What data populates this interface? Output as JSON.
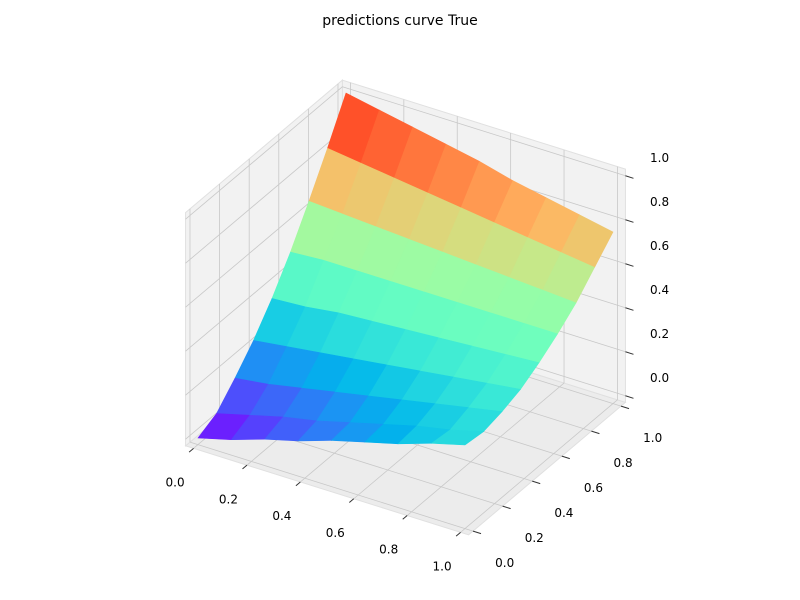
{
  "chart_data": {
    "type": "surface",
    "title": "predictions curve True",
    "x": [
      0,
      0.125,
      0.25,
      0.375,
      0.5,
      0.625,
      0.75,
      0.875,
      1
    ],
    "y": [
      0,
      0.125,
      0.25,
      0.375,
      0.5,
      0.625,
      0.75,
      0.875,
      1
    ],
    "z": [
      [
        0,
        0.04,
        0.09,
        0.13,
        0.18,
        0.22,
        0.26,
        0.31,
        0.35
      ],
      [
        0.04,
        0.08,
        0.12,
        0.15,
        0.19,
        0.23,
        0.27,
        0.3,
        0.34
      ],
      [
        0.13,
        0.15,
        0.18,
        0.21,
        0.24,
        0.27,
        0.3,
        0.33,
        0.36
      ],
      [
        0.23,
        0.25,
        0.27,
        0.29,
        0.31,
        0.33,
        0.35,
        0.37,
        0.39
      ],
      [
        0.35,
        0.36,
        0.38,
        0.39,
        0.4,
        0.41,
        0.42,
        0.43,
        0.44
      ],
      [
        0.49,
        0.5,
        0.5,
        0.5,
        0.5,
        0.5,
        0.5,
        0.5,
        0.5
      ],
      [
        0.65,
        0.64,
        0.63,
        0.62,
        0.61,
        0.6,
        0.59,
        0.58,
        0.57
      ],
      [
        0.82,
        0.8,
        0.78,
        0.76,
        0.74,
        0.72,
        0.7,
        0.68,
        0.66
      ],
      [
        1,
        0.97,
        0.94,
        0.91,
        0.88,
        0.84,
        0.81,
        0.78,
        0.75
      ]
    ],
    "xlim": [
      0,
      1
    ],
    "ylim": [
      0,
      1
    ],
    "zlim": [
      0,
      1
    ],
    "xticks": [
      {
        "value": 0,
        "label": "0.0"
      },
      0.2,
      0.4,
      0.6,
      0.8,
      {
        "value": 1,
        "label": "1.0"
      }
    ],
    "yticks": [
      {
        "value": 0,
        "label": "0.0"
      },
      0.2,
      0.4,
      0.6,
      0.8,
      {
        "value": 1,
        "label": "1.0"
      }
    ],
    "zticks": [
      {
        "value": 0,
        "label": "0.0"
      },
      0.2,
      0.4,
      0.6,
      0.8,
      {
        "value": 1,
        "label": "1.0"
      }
    ],
    "colormap": "rainbow",
    "grid": true
  }
}
